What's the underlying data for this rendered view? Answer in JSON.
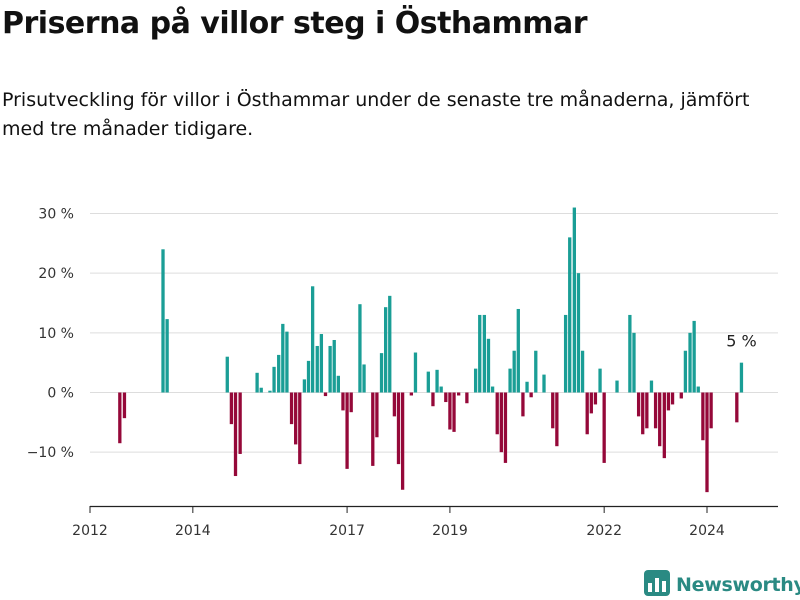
{
  "title": "Priserna på villor steg i Östhammar",
  "subtitle": "Prisutveckling för villor i Östhammar under de senaste tre månaderna, jämfört med tre månader tidigare.",
  "brand": {
    "name": "Newsworthy",
    "logo_icon": "bar-chart-icon"
  },
  "colors": {
    "positive": "#1a9e96",
    "negative": "#950839",
    "grid": "#dddddd",
    "axis": "#222222",
    "brand": "#2a8a83"
  },
  "chart_data": {
    "type": "bar",
    "x_unit": "year",
    "xlim": [
      2012,
      2025.2
    ],
    "ylim": [
      -19,
      31
    ],
    "y_ticks": [
      {
        "value": 30,
        "label": "30 %"
      },
      {
        "value": 20,
        "label": "20 %"
      },
      {
        "value": 10,
        "label": "10 %"
      },
      {
        "value": 0,
        "label": "0 %"
      },
      {
        "value": -10,
        "label": "−10 %"
      }
    ],
    "x_ticks": [
      {
        "value": 2012,
        "label": "2012"
      },
      {
        "value": 2014,
        "label": "2014"
      },
      {
        "value": 2017,
        "label": "2017"
      },
      {
        "value": 2019,
        "label": "2019"
      },
      {
        "value": 2022,
        "label": "2022"
      },
      {
        "value": 2024,
        "label": "2024"
      }
    ],
    "grid": true,
    "last_value_label": "5 %",
    "points": [
      [
        2012.58,
        -8.5
      ],
      [
        2012.67,
        -4.3
      ],
      [
        2013.42,
        24
      ],
      [
        2013.5,
        12.3
      ],
      [
        2014.67,
        6
      ],
      [
        2014.75,
        -5.3
      ],
      [
        2014.83,
        -14
      ],
      [
        2014.92,
        -10.3
      ],
      [
        2015.25,
        3.3
      ],
      [
        2015.33,
        0.8
      ],
      [
        2015.5,
        0.3
      ],
      [
        2015.58,
        4.3
      ],
      [
        2015.67,
        6.3
      ],
      [
        2015.75,
        11.5
      ],
      [
        2015.83,
        10.2
      ],
      [
        2015.92,
        -5.3
      ],
      [
        2016.0,
        -8.7
      ],
      [
        2016.08,
        -12
      ],
      [
        2016.17,
        2.2
      ],
      [
        2016.25,
        5.3
      ],
      [
        2016.33,
        17.8
      ],
      [
        2016.42,
        7.8
      ],
      [
        2016.5,
        9.8
      ],
      [
        2016.58,
        -0.6
      ],
      [
        2016.67,
        7.8
      ],
      [
        2016.75,
        8.8
      ],
      [
        2016.83,
        2.8
      ],
      [
        2016.92,
        -3
      ],
      [
        2017.0,
        -12.8
      ],
      [
        2017.08,
        -3.3
      ],
      [
        2017.25,
        14.8
      ],
      [
        2017.33,
        4.7
      ],
      [
        2017.5,
        -12.3
      ],
      [
        2017.58,
        -7.5
      ],
      [
        2017.67,
        6.6
      ],
      [
        2017.75,
        14.3
      ],
      [
        2017.83,
        16.2
      ],
      [
        2017.92,
        -4
      ],
      [
        2018.0,
        -12
      ],
      [
        2018.08,
        -16.3
      ],
      [
        2018.25,
        -0.5
      ],
      [
        2018.33,
        6.7
      ],
      [
        2018.58,
        3.5
      ],
      [
        2018.67,
        -2.3
      ],
      [
        2018.75,
        3.8
      ],
      [
        2018.83,
        1
      ],
      [
        2018.92,
        -1.6
      ],
      [
        2019.0,
        -6.2
      ],
      [
        2019.08,
        -6.6
      ],
      [
        2019.17,
        -0.5
      ],
      [
        2019.33,
        -1.8
      ],
      [
        2019.5,
        4
      ],
      [
        2019.58,
        13
      ],
      [
        2019.67,
        13
      ],
      [
        2019.75,
        9
      ],
      [
        2019.83,
        1
      ],
      [
        2019.92,
        -7
      ],
      [
        2020.0,
        -10
      ],
      [
        2020.08,
        -11.8
      ],
      [
        2020.17,
        4
      ],
      [
        2020.25,
        7
      ],
      [
        2020.33,
        14
      ],
      [
        2020.42,
        -4
      ],
      [
        2020.5,
        1.8
      ],
      [
        2020.58,
        -0.8
      ],
      [
        2020.67,
        7
      ],
      [
        2020.83,
        3
      ],
      [
        2021.0,
        -6
      ],
      [
        2021.08,
        -9
      ],
      [
        2021.25,
        13
      ],
      [
        2021.33,
        26
      ],
      [
        2021.42,
        31
      ],
      [
        2021.5,
        20
      ],
      [
        2021.58,
        7
      ],
      [
        2021.67,
        -7
      ],
      [
        2021.75,
        -3.5
      ],
      [
        2021.83,
        -2
      ],
      [
        2021.92,
        4
      ],
      [
        2022.0,
        -11.8
      ],
      [
        2022.25,
        2
      ],
      [
        2022.5,
        13
      ],
      [
        2022.58,
        10
      ],
      [
        2022.67,
        -4
      ],
      [
        2022.75,
        -7
      ],
      [
        2022.83,
        -6
      ],
      [
        2022.92,
        2
      ],
      [
        2023.0,
        -6
      ],
      [
        2023.08,
        -9
      ],
      [
        2023.17,
        -11
      ],
      [
        2023.25,
        -3
      ],
      [
        2023.33,
        -2
      ],
      [
        2023.5,
        -1
      ],
      [
        2023.58,
        7
      ],
      [
        2023.67,
        10
      ],
      [
        2023.75,
        12
      ],
      [
        2023.83,
        1
      ],
      [
        2023.92,
        -8
      ],
      [
        2024.0,
        -16.7
      ],
      [
        2024.08,
        -6
      ],
      [
        2024.58,
        -5
      ],
      [
        2024.67,
        5
      ]
    ]
  }
}
